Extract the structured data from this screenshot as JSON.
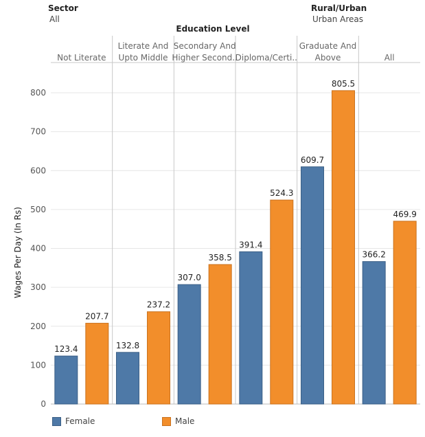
{
  "filters": {
    "sector": {
      "title": "Sector",
      "value": "All"
    },
    "rural_urban": {
      "title": "Rural/Urban",
      "value": "Urban Areas"
    }
  },
  "colors": {
    "female": "#4e79a7",
    "male": "#f28e2b",
    "grid": "#e6e6e6",
    "divider": "#c8c8c8"
  },
  "chart_data": {
    "type": "bar",
    "title": "Education Level",
    "xlabel": "Education Level",
    "ylabel": "Wages Per Day (In Rs)",
    "ylim": [
      0,
      850
    ],
    "yticks": [
      0,
      100,
      200,
      300,
      400,
      500,
      600,
      700,
      800
    ],
    "categories": [
      [
        "Not Literate"
      ],
      [
        "Literate And",
        "Upto Middle"
      ],
      [
        "Secondary And",
        "Higher Second.."
      ],
      [
        "Diploma/Certi.."
      ],
      [
        "Graduate And",
        "Above"
      ],
      [
        "All"
      ]
    ],
    "series": [
      {
        "name": "Female",
        "values": [
          123.4,
          132.8,
          307.0,
          391.4,
          609.7,
          366.2
        ]
      },
      {
        "name": "Male",
        "values": [
          207.7,
          237.2,
          358.5,
          524.3,
          805.5,
          469.9
        ]
      }
    ]
  }
}
